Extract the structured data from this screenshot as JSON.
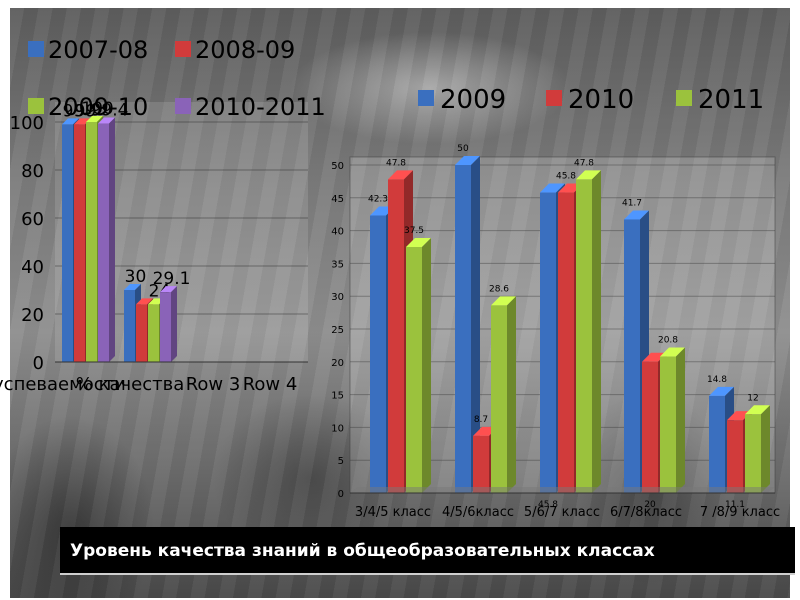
{
  "title": "Уровень качества знаний в общеобразовательных классах",
  "colors": {
    "blue": "#3a6fbf",
    "red": "#d13b3b",
    "green": "#9bc23d",
    "purple": "#8a63b8"
  },
  "chart_data": [
    {
      "type": "bar",
      "title": "",
      "categories": [
        "% успеваемости",
        "% качества",
        "Row 3",
        "Row 4"
      ],
      "series": [
        {
          "name": "2007-08",
          "values": [
            99,
            30,
            null,
            null
          ],
          "labels": [
            "99",
            "30",
            "",
            ""
          ]
        },
        {
          "name": "2008-09",
          "values": [
            99,
            24,
            null,
            null
          ],
          "labels": [
            "99",
            "",
            "",
            ""
          ]
        },
        {
          "name": "2009-10",
          "values": [
            100,
            24,
            null,
            null
          ],
          "labels": [
            "100",
            "24",
            "",
            ""
          ]
        },
        {
          "name": "2010-2011",
          "values": [
            99.4,
            29.1,
            null,
            null
          ],
          "labels": [
            "99.4",
            "29.1",
            "",
            ""
          ]
        }
      ],
      "yticks": [
        "0",
        "20",
        "40",
        "60",
        "80",
        "100"
      ],
      "ylim": [
        0,
        100
      ],
      "grid": true,
      "legend": "top"
    },
    {
      "type": "bar",
      "title": "",
      "categories": [
        "3/4/5 класс",
        "4/5/6класс",
        "5/6/7 класс",
        "6/7/8класс",
        "7 /8/9 класс"
      ],
      "series": [
        {
          "name": "2009",
          "values": [
            42.3,
            50,
            45.8,
            41.7,
            14.8
          ],
          "labels": [
            "42.3",
            "50",
            "45.8",
            "41.7",
            "14.8"
          ]
        },
        {
          "name": "2010",
          "values": [
            47.8,
            8.7,
            45.8,
            20,
            11.1
          ],
          "labels": [
            "47.8",
            "8.7",
            "45.8",
            "20",
            "11.1"
          ]
        },
        {
          "name": "2011",
          "values": [
            37.5,
            28.6,
            47.8,
            20.8,
            12
          ],
          "labels": [
            "37.5",
            "28.6",
            "47.8",
            "20.8",
            "12"
          ]
        }
      ],
      "yticks": [
        "0",
        "5",
        "10",
        "15",
        "20",
        "25",
        "30",
        "35",
        "40",
        "45",
        "50"
      ],
      "ylim": [
        0,
        50
      ],
      "grid": true,
      "legend": "top"
    }
  ]
}
